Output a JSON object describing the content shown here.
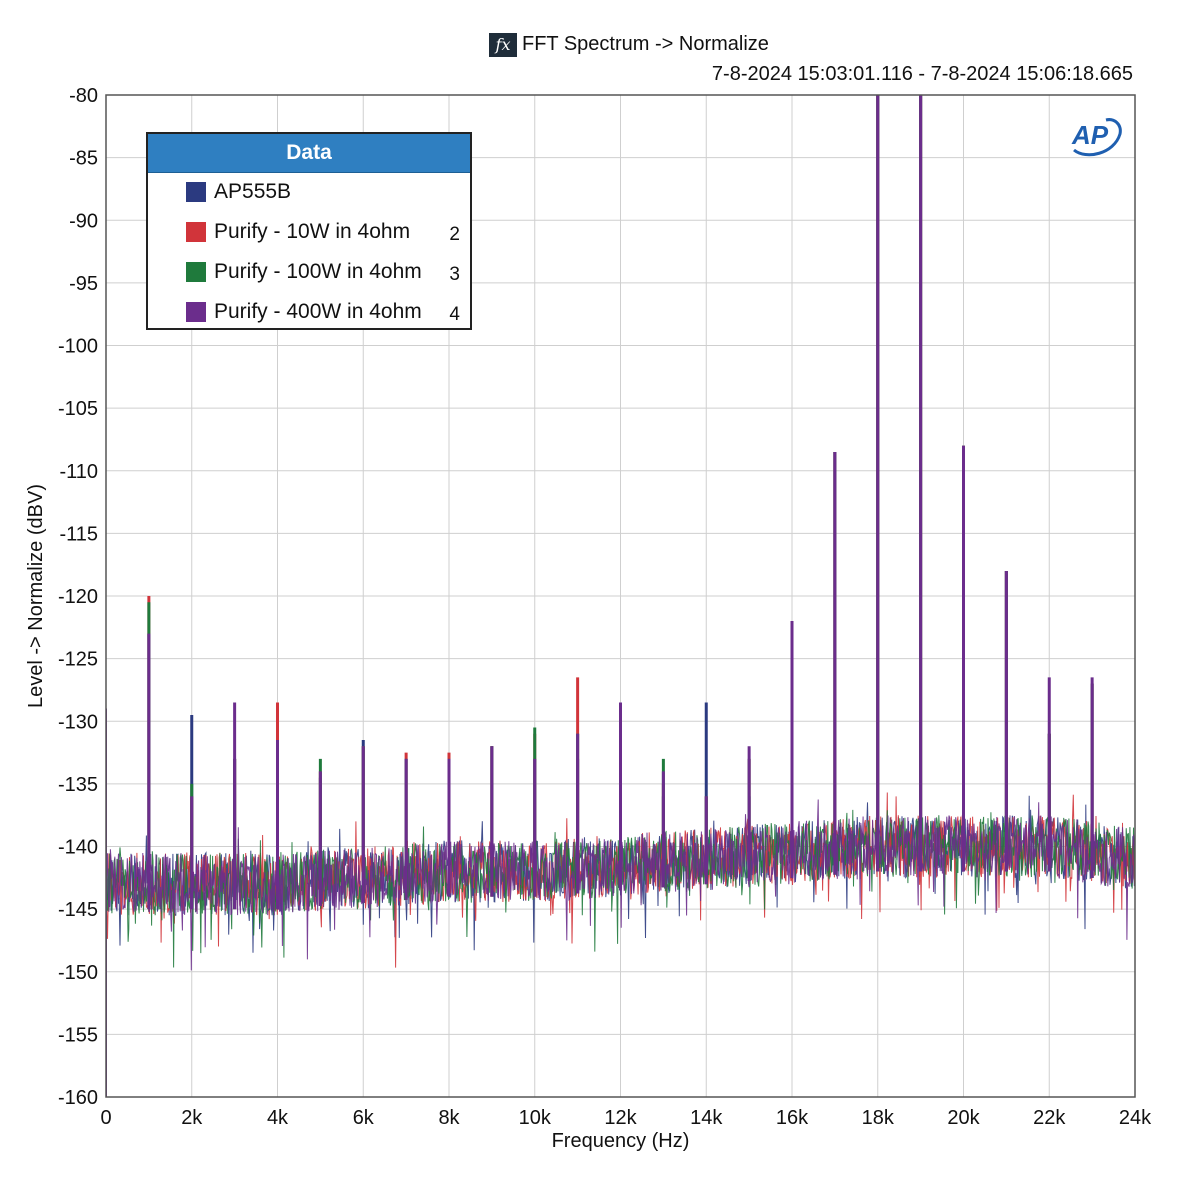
{
  "header": {
    "fx_glyph": "fx",
    "title": "FFT Spectrum -> Normalize",
    "time_range": "7-8-2024 15:03:01.116 - 7-8-2024 15:06:18.665"
  },
  "legend": {
    "title": "Data",
    "items": [
      {
        "label": "AP555B",
        "index": "",
        "color": "#2b3a80"
      },
      {
        "label": "Purify - 10W in 4ohm",
        "index": "2",
        "color": "#d1343a"
      },
      {
        "label": "Purify - 100W in 4ohm",
        "index": "3",
        "color": "#1f7a3c"
      },
      {
        "label": "Purify - 400W in 4ohm",
        "index": "4",
        "color": "#6b2d8c"
      }
    ]
  },
  "logo": {
    "text": "AP",
    "color": "#1f5fb0"
  },
  "colors": {
    "grid": "#cfcfcf",
    "plot_border": "#555555"
  },
  "chart_data": {
    "type": "line",
    "title": "FFT Spectrum -> Normalize",
    "subtitle": "7-8-2024 15:03:01.116 - 7-8-2024 15:06:18.665",
    "xlabel": "Frequency (Hz)",
    "ylabel": "Level -> Normalize (dBV)",
    "xlim": [
      0,
      24000
    ],
    "ylim": [
      -160,
      -80
    ],
    "xticks": [
      0,
      2000,
      4000,
      6000,
      8000,
      10000,
      12000,
      14000,
      16000,
      18000,
      20000,
      22000,
      24000
    ],
    "xtick_labels": [
      "0",
      "2k",
      "4k",
      "6k",
      "8k",
      "10k",
      "12k",
      "14k",
      "16k",
      "18k",
      "20k",
      "22k",
      "24k"
    ],
    "yticks": [
      -80,
      -85,
      -90,
      -95,
      -100,
      -105,
      -110,
      -115,
      -120,
      -125,
      -130,
      -135,
      -140,
      -145,
      -150,
      -155,
      -160
    ],
    "ytick_labels": [
      "-80",
      "-85",
      "-90",
      "-95",
      "-100",
      "-105",
      "-110",
      "-115",
      "-120",
      "-125",
      "-130",
      "-135",
      "-140",
      "-145",
      "-150",
      "-155",
      "-160"
    ],
    "grid": true,
    "legend_position": "top-left",
    "noise_floor": {
      "x": [
        0,
        2000,
        4000,
        6000,
        8000,
        10000,
        12000,
        14000,
        16000,
        18000,
        20000,
        22000,
        24000
      ],
      "level": [
        -143,
        -143,
        -143,
        -142.5,
        -142,
        -142,
        -141.5,
        -141,
        -140.5,
        -140,
        -140,
        -140,
        -141
      ]
    },
    "series": [
      {
        "name": "AP555B",
        "color": "#2b3a80",
        "peaks": [
          [
            1000,
            -123
          ],
          [
            2000,
            -129.5
          ],
          [
            3000,
            -133
          ],
          [
            4000,
            -131
          ],
          [
            5000,
            -134.5
          ],
          [
            6000,
            -131.5
          ],
          [
            7000,
            -133
          ],
          [
            8000,
            -133.5
          ],
          [
            9000,
            -132
          ],
          [
            10000,
            -133
          ],
          [
            11000,
            -133
          ],
          [
            12000,
            -133
          ],
          [
            13000,
            -136
          ],
          [
            14000,
            -128.5
          ],
          [
            15000,
            -136
          ],
          [
            16000,
            -126
          ],
          [
            17000,
            -108.5
          ],
          [
            18000,
            -80
          ],
          [
            19000,
            -80
          ],
          [
            20000,
            -108
          ],
          [
            21000,
            -118
          ],
          [
            22000,
            -131
          ],
          [
            23000,
            -127
          ]
        ]
      },
      {
        "name": "Purify - 10W in 4ohm",
        "color": "#d1343a",
        "peaks": [
          [
            1000,
            -120
          ],
          [
            2000,
            -136
          ],
          [
            3000,
            -133
          ],
          [
            4000,
            -128.5
          ],
          [
            5000,
            -134
          ],
          [
            6000,
            -132
          ],
          [
            7000,
            -132.5
          ],
          [
            8000,
            -132.5
          ],
          [
            9000,
            -132
          ],
          [
            10000,
            -131
          ],
          [
            11000,
            -126.5
          ],
          [
            12000,
            -133
          ],
          [
            13000,
            -135
          ],
          [
            14000,
            -136
          ],
          [
            15000,
            -133
          ],
          [
            16000,
            -126
          ],
          [
            17000,
            -108.5
          ],
          [
            18000,
            -80
          ],
          [
            19000,
            -80
          ],
          [
            20000,
            -108
          ],
          [
            21000,
            -118
          ],
          [
            22000,
            -131
          ],
          [
            23000,
            -127
          ]
        ]
      },
      {
        "name": "Purify - 100W in 4ohm",
        "color": "#1f7a3c",
        "peaks": [
          [
            1000,
            -120.5
          ],
          [
            2000,
            -135
          ],
          [
            3000,
            -133
          ],
          [
            4000,
            -131.5
          ],
          [
            5000,
            -133
          ],
          [
            6000,
            -132
          ],
          [
            7000,
            -133
          ],
          [
            8000,
            -133
          ],
          [
            9000,
            -132
          ],
          [
            10000,
            -130.5
          ],
          [
            11000,
            -131
          ],
          [
            12000,
            -133
          ],
          [
            13000,
            -133
          ],
          [
            14000,
            -136
          ],
          [
            15000,
            -133
          ],
          [
            16000,
            -126
          ],
          [
            17000,
            -108.5
          ],
          [
            18000,
            -80
          ],
          [
            19000,
            -80
          ],
          [
            20000,
            -108
          ],
          [
            21000,
            -118
          ],
          [
            22000,
            -131
          ],
          [
            23000,
            -127
          ]
        ]
      },
      {
        "name": "Purify - 400W in 4ohm",
        "color": "#6b2d8c",
        "peaks": [
          [
            1000,
            -123
          ],
          [
            2000,
            -136
          ],
          [
            3000,
            -128.5
          ],
          [
            4000,
            -131.5
          ],
          [
            5000,
            -134
          ],
          [
            6000,
            -132
          ],
          [
            7000,
            -133
          ],
          [
            8000,
            -133
          ],
          [
            9000,
            -132
          ],
          [
            10000,
            -133
          ],
          [
            11000,
            -131
          ],
          [
            12000,
            -128.5
          ],
          [
            13000,
            -134
          ],
          [
            14000,
            -136
          ],
          [
            15000,
            -132
          ],
          [
            16000,
            -122
          ],
          [
            17000,
            -108.5
          ],
          [
            18000,
            -80
          ],
          [
            19000,
            -80
          ],
          [
            20000,
            -108
          ],
          [
            21000,
            -118
          ],
          [
            22000,
            -126.5
          ],
          [
            23000,
            -126.5
          ]
        ]
      }
    ]
  }
}
